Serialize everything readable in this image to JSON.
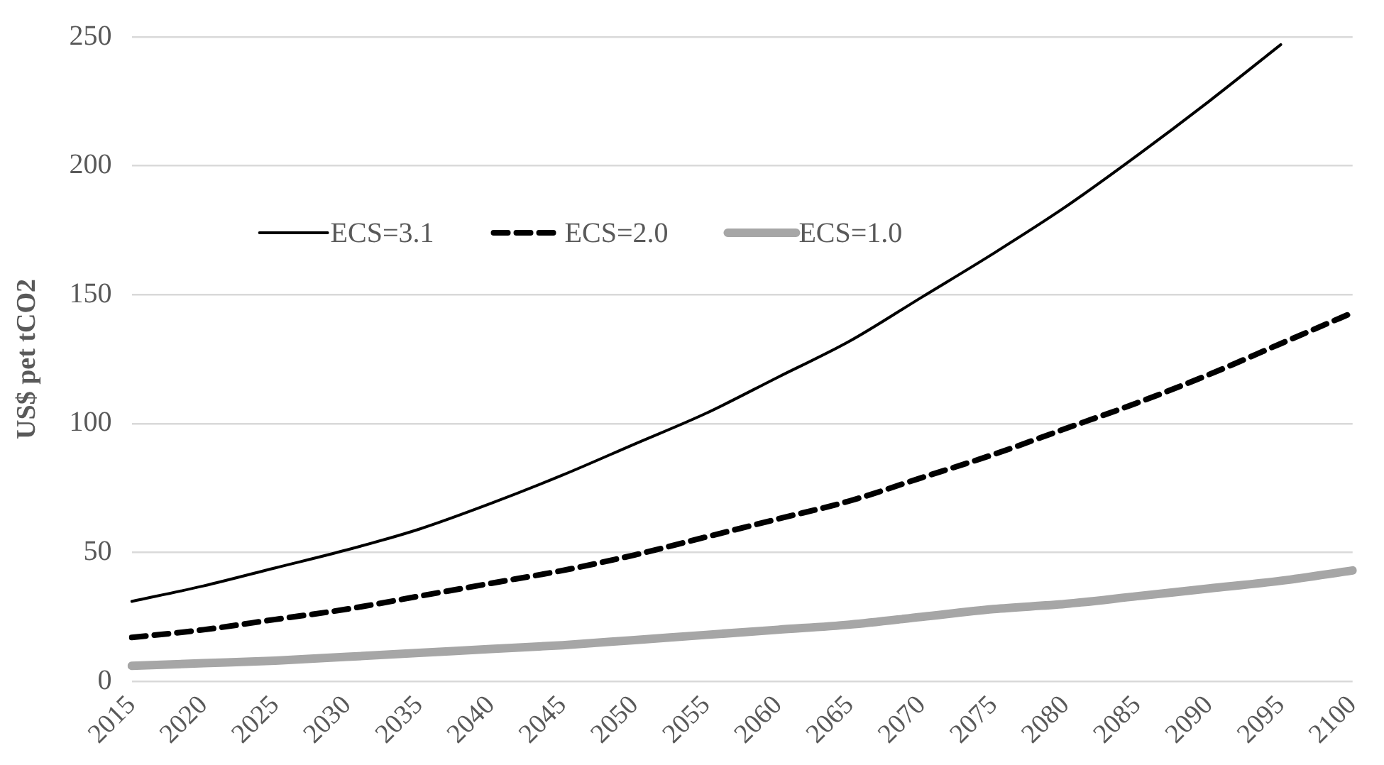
{
  "chart_data": {
    "type": "line",
    "ylabel": "US$ pet tCO2",
    "categories": [
      "2015",
      "2020",
      "2025",
      "2030",
      "2035",
      "2040",
      "2045",
      "2050",
      "2055",
      "2060",
      "2065",
      "2070",
      "2075",
      "2080",
      "2085",
      "2090",
      "2095",
      "2100"
    ],
    "series": [
      {
        "name": "ECS=3.1",
        "color": "#000000",
        "line_style": "solid",
        "values": [
          31,
          37,
          44,
          51,
          59,
          69,
          80,
          92,
          104,
          118,
          132,
          149,
          166,
          184,
          204,
          225,
          247,
          null
        ]
      },
      {
        "name": "ECS=2.0",
        "color": "#000000",
        "line_style": "dashed",
        "values": [
          17,
          20,
          24,
          28,
          33,
          38,
          43,
          49,
          56,
          63,
          70,
          79,
          88,
          98,
          108,
          119,
          131,
          143
        ]
      },
      {
        "name": "ECS=1.0",
        "color": "#a6a6a6",
        "line_style": "solid",
        "values": [
          6,
          7,
          8,
          9.5,
          11,
          12.5,
          14,
          16,
          18,
          20,
          22,
          25,
          28,
          30,
          33,
          36,
          39,
          43
        ]
      }
    ],
    "ylim": [
      0,
      250
    ],
    "yticks": [
      0,
      50,
      100,
      150,
      200,
      250
    ],
    "grid": "y",
    "legend": "top left",
    "marker": "none"
  }
}
